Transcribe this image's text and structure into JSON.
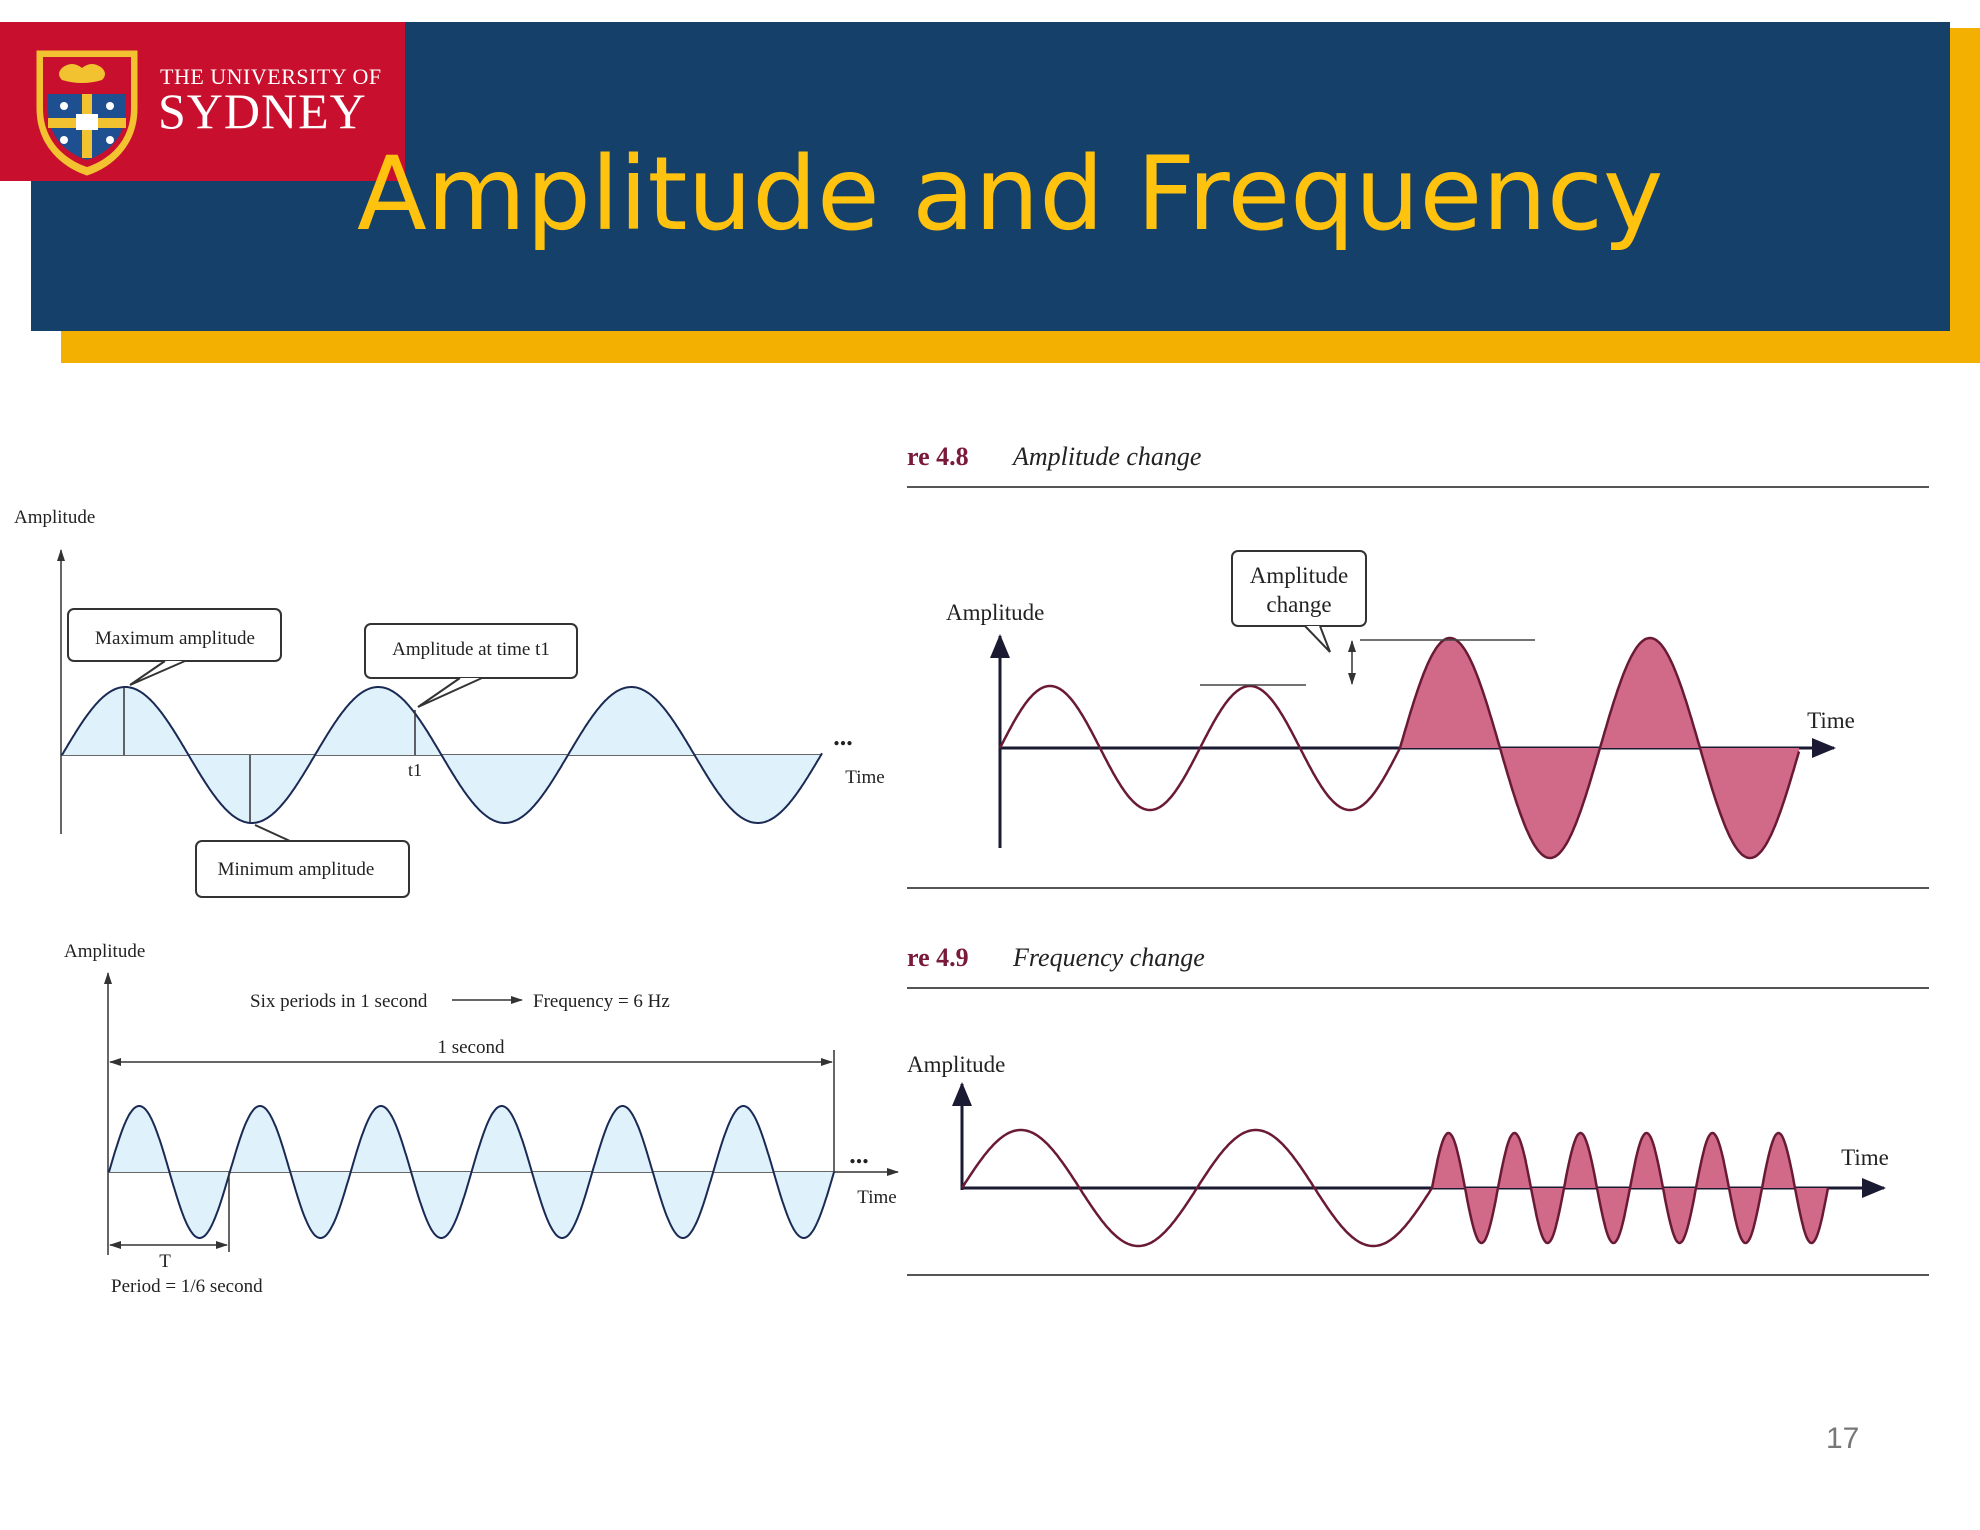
{
  "header": {
    "logo_line1": "THE UNIVERSITY OF",
    "logo_line2": "SYDNEY",
    "title": "Amplitude and Frequency",
    "colors": {
      "navy": "#15406a",
      "gold": "#f4b000",
      "title": "#ffc20e",
      "logo_red": "#c8102e"
    }
  },
  "fig_top_left": {
    "y_axis_label": "Amplitude",
    "max_callout": "Maximum  amplitude",
    "time_callout": "Amplitude at time t1",
    "min_callout": "Minimum  amplitude",
    "t1_label": "t1",
    "x_axis_label": "Time",
    "ellipsis": "..."
  },
  "fig_bottom_left": {
    "y_axis_label": "Amplitude",
    "periods_text": "Six periods in 1 second",
    "frequency_text": "Frequency = 6 Hz",
    "span_label": "1 second",
    "x_axis_label": "Time",
    "ellipsis": "...",
    "period_mark": "T",
    "period_text": "Period = 1/6  second",
    "cycles": 6
  },
  "fig_48": {
    "figure_number": "re 4.8",
    "caption": "Amplitude change",
    "y_axis_label": "Amplitude",
    "callout_line1": "Amplitude",
    "callout_line2": "change",
    "x_axis_label": "Time"
  },
  "fig_49": {
    "figure_number": "re 4.9",
    "caption": "Frequency change",
    "y_axis_label": "Amplitude",
    "x_axis_label": "Time"
  },
  "page_number": "17"
}
